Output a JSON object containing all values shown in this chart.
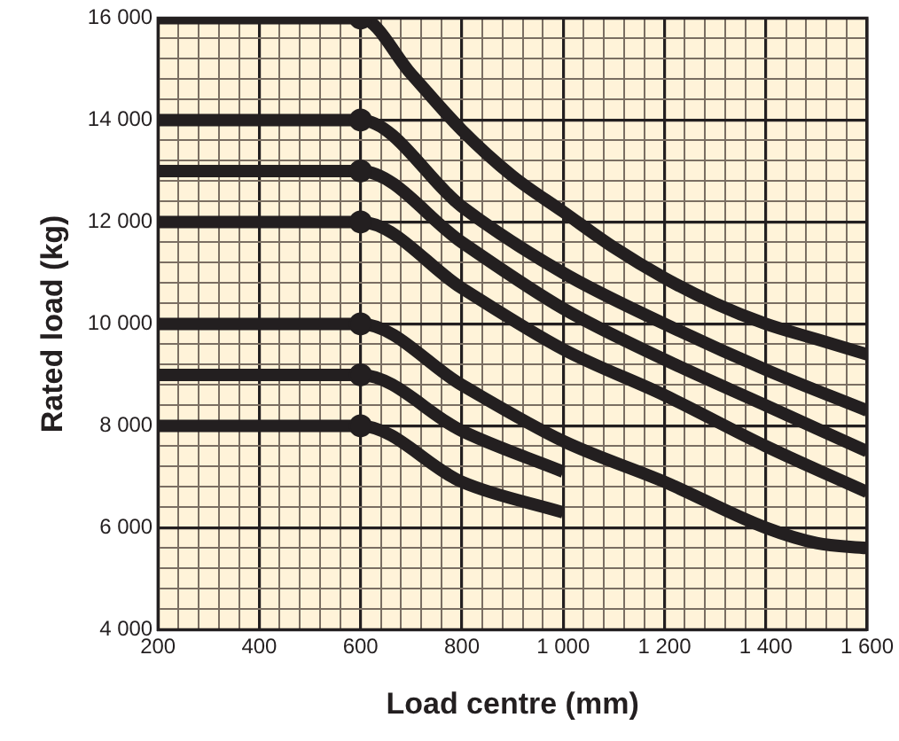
{
  "chart_data": {
    "type": "line",
    "xlabel": "Load centre (mm)",
    "ylabel": "Rated load (kg)",
    "xlim": [
      200,
      1600
    ],
    "ylim": [
      4000,
      16000
    ],
    "xticks": [
      200,
      {
        "value": 240,
        "label": null
      },
      {
        "value": 280,
        "label": null
      },
      {
        "value": 320,
        "label": null
      },
      {
        "value": 360,
        "label": null
      },
      400,
      {
        "value": 440,
        "label": null
      },
      {
        "value": 480,
        "label": null
      },
      {
        "value": 520,
        "label": null
      },
      {
        "value": 560,
        "label": null
      },
      600,
      {
        "value": 640,
        "label": null
      },
      {
        "value": 680,
        "label": null
      },
      {
        "value": 720,
        "label": null
      },
      {
        "value": 760,
        "label": null
      },
      800,
      {
        "value": 840,
        "label": null
      },
      {
        "value": 880,
        "label": null
      },
      {
        "value": 920,
        "label": null
      },
      {
        "value": 960,
        "label": null
      },
      {
        "value": 1000,
        "label": "1 000"
      },
      {
        "value": 1040,
        "label": null
      },
      {
        "value": 1080,
        "label": null
      },
      {
        "value": 1120,
        "label": null
      },
      {
        "value": 1160,
        "label": null
      },
      {
        "value": 1200,
        "label": "1 200"
      },
      {
        "value": 1240,
        "label": null
      },
      {
        "value": 1280,
        "label": null
      },
      {
        "value": 1320,
        "label": null
      },
      {
        "value": 1360,
        "label": null
      },
      {
        "value": 1400,
        "label": "1 400"
      },
      {
        "value": 1440,
        "label": null
      },
      {
        "value": 1480,
        "label": null
      },
      {
        "value": 1520,
        "label": null
      },
      {
        "value": 1560,
        "label": null
      },
      {
        "value": 1600,
        "label": "1 600"
      }
    ],
    "yticks": [
      {
        "value": 4000,
        "label": "4 000"
      },
      {
        "value": 4400,
        "label": null
      },
      {
        "value": 4800,
        "label": null
      },
      {
        "value": 5200,
        "label": null
      },
      {
        "value": 5600,
        "label": null
      },
      {
        "value": 6000,
        "label": "6 000"
      },
      {
        "value": 6400,
        "label": null
      },
      {
        "value": 6800,
        "label": null
      },
      {
        "value": 7200,
        "label": null
      },
      {
        "value": 7600,
        "label": null
      },
      {
        "value": 8000,
        "label": "8 000"
      },
      {
        "value": 8400,
        "label": null
      },
      {
        "value": 8800,
        "label": null
      },
      {
        "value": 9200,
        "label": null
      },
      {
        "value": 9600,
        "label": null
      },
      {
        "value": 10000,
        "label": "10 000"
      },
      {
        "value": 10400,
        "label": null
      },
      {
        "value": 10800,
        "label": null
      },
      {
        "value": 11200,
        "label": null
      },
      {
        "value": 11600,
        "label": null
      },
      {
        "value": 12000,
        "label": "12 000"
      },
      {
        "value": 12400,
        "label": null
      },
      {
        "value": 12800,
        "label": null
      },
      {
        "value": 13200,
        "label": null
      },
      {
        "value": 13600,
        "label": null
      },
      {
        "value": 14000,
        "label": "14 000"
      },
      {
        "value": 14400,
        "label": null
      },
      {
        "value": 14800,
        "label": null
      },
      {
        "value": 15200,
        "label": null
      },
      {
        "value": 15600,
        "label": null
      },
      {
        "value": 16000,
        "label": "16 000"
      }
    ],
    "grid": true,
    "marker": "none",
    "line_style": "solid",
    "series": [
      {
        "color": "#231f20",
        "x": [
          200,
          600,
          700,
          800,
          900,
          1000,
          1100,
          1200,
          1300,
          1400,
          1500,
          1600
        ],
        "values": [
          16000,
          16000,
          14900,
          13800,
          12900,
          12200,
          11500,
          10900,
          10400,
          10000,
          9700,
          9400
        ]
      },
      {
        "color": "#231f20",
        "x": [
          200,
          600,
          800,
          1000,
          1200,
          1400,
          1600
        ],
        "values": [
          14000,
          14000,
          12300,
          11000,
          10000,
          9100,
          8300
        ]
      },
      {
        "color": "#231f20",
        "x": [
          200,
          600,
          800,
          1000,
          1200,
          1400,
          1600
        ],
        "values": [
          13000,
          13000,
          11600,
          10300,
          9300,
          8400,
          7500
        ]
      },
      {
        "color": "#231f20",
        "x": [
          200,
          600,
          800,
          1000,
          1200,
          1400,
          1600
        ],
        "values": [
          12000,
          12000,
          10700,
          9500,
          8600,
          7600,
          6700
        ]
      },
      {
        "color": "#231f20",
        "x": [
          200,
          600,
          800,
          1000,
          1200,
          1400,
          1500,
          1600
        ],
        "values": [
          10000,
          10000,
          8800,
          7700,
          6900,
          6000,
          5700,
          5600
        ]
      },
      {
        "color": "#231f20",
        "x": [
          200,
          600,
          800,
          1000
        ],
        "values": [
          9000,
          9000,
          7900,
          7100
        ]
      },
      {
        "color": "#231f20",
        "x": [
          200,
          600,
          800,
          1000
        ],
        "values": [
          8000,
          8000,
          6900,
          6300
        ]
      },
      {
        "type": "scatter",
        "marker": "circle",
        "color": "#231f20",
        "x": [
          600,
          600,
          600,
          600,
          600,
          600,
          600
        ],
        "values": [
          16000,
          14000,
          13000,
          12000,
          10000,
          9000,
          8000
        ]
      }
    ]
  }
}
